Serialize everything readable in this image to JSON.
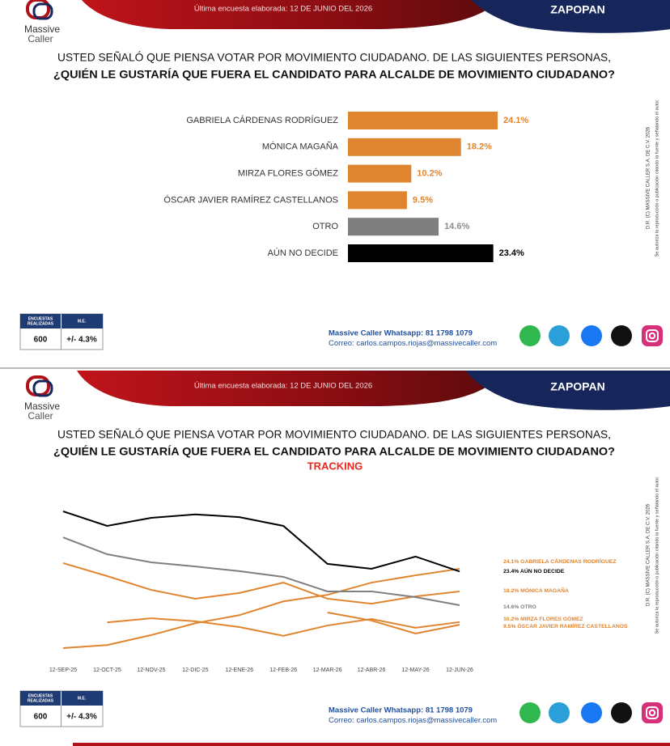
{
  "slides": [
    {
      "logo": [
        "Massive",
        "Caller"
      ],
      "banner": "Última encuesta elaborada: 12 DE JUNIO DEL 2026",
      "region": "ZAPOPAN",
      "question": [
        "USTED SEÑALÓ QUE PIENSA VOTAR POR MOVIMIENTO CIUDADANO. DE LAS SIGUIENTES PERSONAS,",
        "¿QUIÉN LE GUSTARÍA QUE FUERA EL CANDIDATO PARA ALCALDE DE MOVIMIENTO CIUDADANO?"
      ],
      "table": {
        "headers": [
          [
            "ENCUESTAS",
            "REALIZADAS"
          ],
          [
            "M.E."
          ]
        ],
        "values": [
          "600",
          "+/- 4.3%"
        ]
      },
      "contact": [
        "Massive Caller Whatsapp: 81 1798 1079",
        "Correo: carlos.campos.riojas@massivecaller.com"
      ],
      "rights": [
        "D.R. (C) MASSIVE CALLER S.A. DE C.V. 2026",
        "Se autoriza la reproducción o publicación citando la fuente y señalando el autor."
      ]
    },
    {
      "logo": [
        "Massive",
        "Caller"
      ],
      "banner": "Última encuesta elaborada: 12 DE JUNIO DEL 2026",
      "region": "ZAPOPAN",
      "question": [
        "USTED SEÑALÓ QUE PIENSA VOTAR POR MOVIMIENTO CIUDADANO. DE LAS SIGUIENTES PERSONAS,",
        "¿QUIÉN LE GUSTARÍA QUE FUERA EL CANDIDATO PARA ALCALDE DE MOVIMIENTO CIUDADANO?"
      ],
      "table": {
        "headers": [
          [
            "ENCUESTAS",
            "REALIZADAS"
          ],
          [
            "M.E."
          ]
        ],
        "values": [
          "600",
          "+/- 4.3%"
        ]
      },
      "contact": [
        "Massive Caller Whatsapp: 81 1798 1079",
        "Correo: carlos.campos.riojas@massivecaller.com"
      ],
      "rights": [
        "D.R. (C) MASSIVE CALLER S.A. DE C.V. 2026",
        "Se autoriza la reproducción o publicación citando la fuente y señalando el autor."
      ]
    }
  ],
  "chart_data": [
    {
      "type": "bar",
      "orientation": "horizontal",
      "categories": [
        "GABRIELA CÁRDENAS RODRÍGUEZ",
        "MÓNICA MAGAÑA",
        "MIRZA FLORES GÓMEZ",
        "ÓSCAR JAVIER RAMÍREZ CASTELLANOS",
        "OTRO",
        "AÚN NO DECIDE"
      ],
      "values": [
        24.1,
        18.2,
        10.2,
        9.5,
        14.6,
        23.4
      ],
      "value_labels": [
        "24.1%",
        "18.2%",
        "10.2%",
        "9.5%",
        "14.6%",
        "23.4%"
      ],
      "colors": [
        "#e0852f",
        "#e0852f",
        "#e0852f",
        "#e0852f",
        "#7f7f7f",
        "#000000"
      ],
      "label_colors": [
        "#e0852f",
        "#e0852f",
        "#e0852f",
        "#e0852f",
        "#8c8c8c",
        "#000000"
      ]
    },
    {
      "type": "line",
      "subtitle": "TRACKING",
      "x": [
        "12-SEP-25",
        "12-OCT-25",
        "12-NOV-25",
        "12-DIC-25",
        "12-ENE-26",
        "12-FEB-26",
        "12-MAR-26",
        "12-ABR-26",
        "12-MAY-26",
        "12-JUN-26"
      ],
      "series": [
        {
          "name": "24.1% GABRIELA CÁRDENAS RODRÍGUEZ",
          "color": "#e0852f",
          "values": [
            3.4,
            4.2,
            6.8,
            9.9,
            12.0,
            15.6,
            17.3,
            20.5,
            22.4,
            24.1
          ]
        },
        {
          "name": "23.4% AÚN NO DECIDE",
          "color": "#000000",
          "values": [
            39.1,
            35.3,
            37.4,
            38.3,
            37.6,
            35.3,
            25.4,
            24.1,
            27.3,
            23.4
          ]
        },
        {
          "name": "18.2% MÓNICA MAGAÑA",
          "color": "#e0852f",
          "values": [
            25.6,
            22.2,
            18.6,
            16.3,
            17.8,
            20.5,
            16.3,
            15.0,
            16.9,
            18.2
          ]
        },
        {
          "name": "14.6% OTRO",
          "color": "#7f7f7f",
          "values": [
            32.3,
            27.9,
            25.8,
            24.7,
            23.5,
            22.0,
            18.2,
            18.2,
            16.7,
            14.6
          ]
        },
        {
          "name": "10.2% MIRZA FLORES GÓMEZ",
          "color": "#e0852f",
          "values": [
            null,
            10.1,
            11.2,
            10.4,
            8.9,
            6.6,
            9.3,
            11.0,
            8.7,
            10.2
          ]
        },
        {
          "name": "9.5% ÓSCAR JAVIER RAMÍREZ CASTELLANOS",
          "color": "#e0852f",
          "values": [
            null,
            null,
            null,
            null,
            null,
            null,
            12.7,
            10.6,
            7.2,
            9.5
          ]
        }
      ]
    }
  ]
}
